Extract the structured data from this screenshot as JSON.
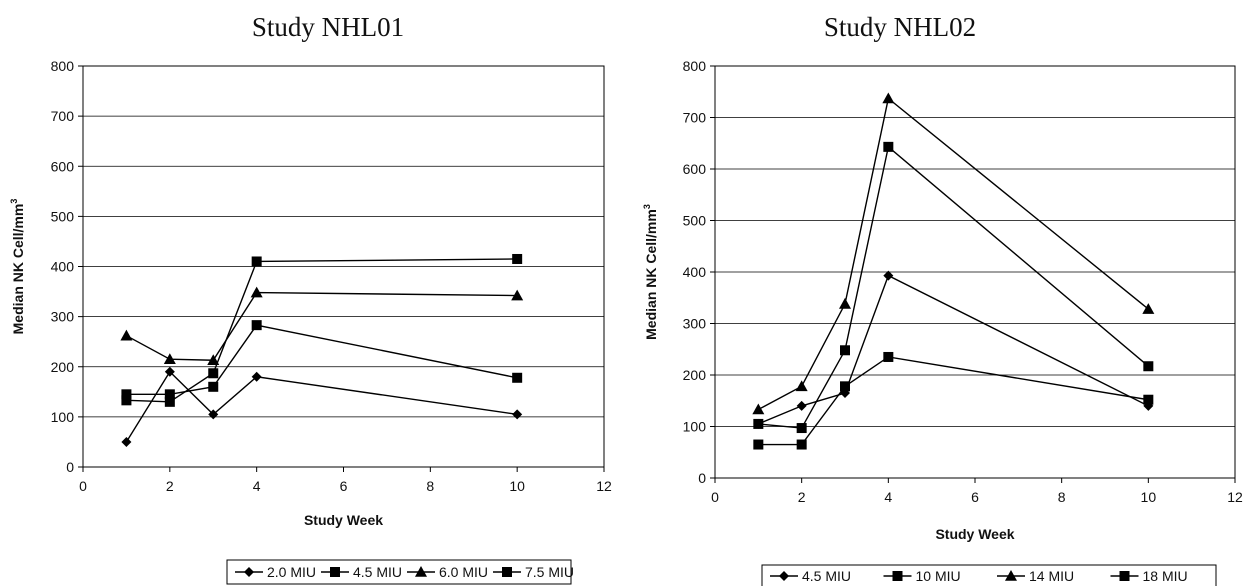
{
  "chart_data": [
    {
      "type": "line",
      "title": "Study NHL01",
      "xlabel": "Study Week",
      "ylabel": "Median NK Cell/mm",
      "ylabel_sup": "3",
      "xlim": [
        0,
        12
      ],
      "ylim": [
        0,
        800
      ],
      "xticks": [
        "0",
        "2",
        "4",
        "6",
        "8",
        "10",
        "12"
      ],
      "yticks": [
        "0",
        "100",
        "200",
        "300",
        "400",
        "500",
        "600",
        "700",
        "800"
      ],
      "grid": "horizontal",
      "legend_position": "bottom",
      "series": [
        {
          "name": "2.0 MIU",
          "marker": "diamond",
          "x": [
            1,
            2,
            3,
            4,
            10
          ],
          "y": [
            50,
            190,
            105,
            180,
            105
          ]
        },
        {
          "name": "4.5 MIU",
          "marker": "square",
          "x": [
            1,
            2,
            3,
            4,
            10
          ],
          "y": [
            145,
            145,
            160,
            283,
            178
          ]
        },
        {
          "name": "6.0 MIU",
          "marker": "triangle",
          "x": [
            1,
            2,
            3,
            4,
            10
          ],
          "y": [
            262,
            215,
            213,
            348,
            342
          ]
        },
        {
          "name": "7.5 MIU",
          "marker": "square",
          "x": [
            1,
            2,
            3,
            4,
            10
          ],
          "y": [
            133,
            130,
            187,
            410,
            415
          ]
        }
      ]
    },
    {
      "type": "line",
      "title": "Study NHL02",
      "xlabel": "Study Week",
      "ylabel": "Median NK Cell/mm",
      "ylabel_sup": "3",
      "xlim": [
        0,
        12
      ],
      "ylim": [
        0,
        800
      ],
      "xticks": [
        "0",
        "2",
        "4",
        "6",
        "8",
        "10",
        "12"
      ],
      "yticks": [
        "0",
        "100",
        "200",
        "300",
        "400",
        "500",
        "600",
        "700",
        "800"
      ],
      "grid": "horizontal",
      "legend_position": "bottom",
      "series": [
        {
          "name": "4.5 MIU",
          "marker": "diamond",
          "x": [
            1,
            2,
            3,
            4,
            10
          ],
          "y": [
            105,
            140,
            165,
            393,
            140
          ]
        },
        {
          "name": "10 MIU",
          "marker": "square",
          "x": [
            1,
            2,
            3,
            4,
            10
          ],
          "y": [
            65,
            65,
            178,
            235,
            152
          ]
        },
        {
          "name": "14 MIU",
          "marker": "triangle",
          "x": [
            1,
            2,
            3,
            4,
            10
          ],
          "y": [
            133,
            178,
            338,
            737,
            328
          ]
        },
        {
          "name": "18 MIU",
          "marker": "square",
          "x": [
            1,
            2,
            3,
            4,
            10
          ],
          "y": [
            105,
            97,
            248,
            643,
            217
          ]
        }
      ]
    }
  ]
}
